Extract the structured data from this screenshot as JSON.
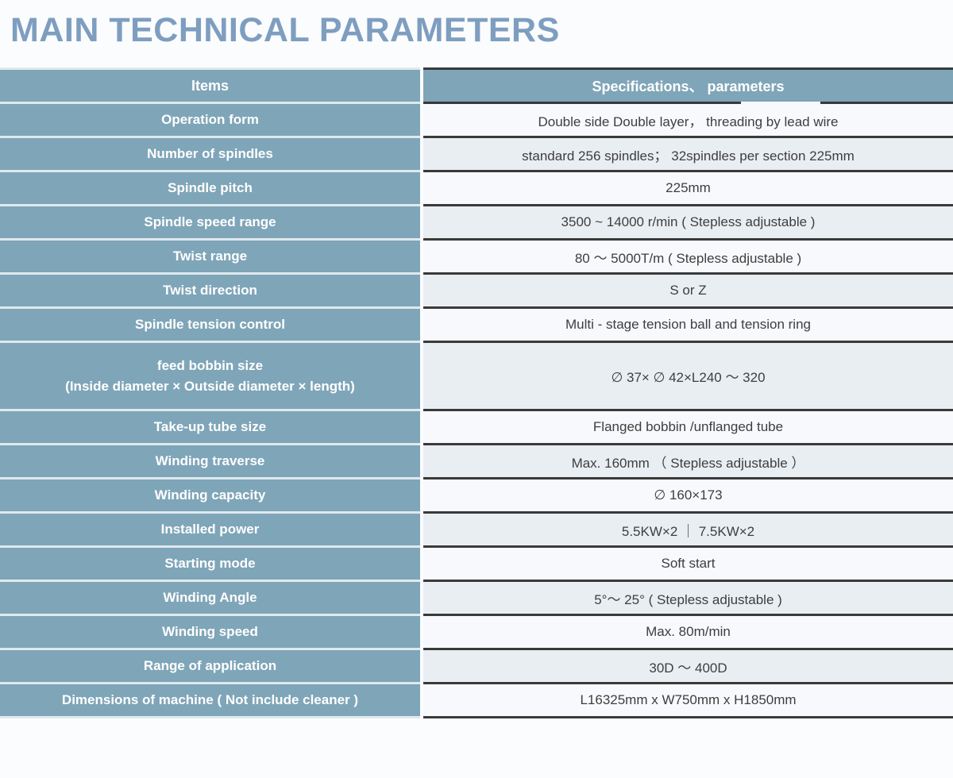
{
  "title": "MAIN TECHNICAL PARAMETERS",
  "colors": {
    "title_blue": "#7e9ec0",
    "cell_blue": "#7fa5b8",
    "row_light": "#f7f9fc",
    "row_shaded": "#e9eef3",
    "border_dark": "#3a3a3a"
  },
  "table": {
    "header": {
      "items": "Items",
      "specs": "Specifications、 parameters"
    },
    "rows": [
      {
        "item": "Operation form",
        "spec": "Double side Double layer，  threading by lead wire"
      },
      {
        "item": "Number of spindles",
        "spec": "standard  256 spindles；  32spindles per section 225mm"
      },
      {
        "item": "Spindle pitch",
        "spec": "225mm"
      },
      {
        "item": "Spindle speed range",
        "spec": "3500 ~ 14000 r/min ( Stepless adjustable )"
      },
      {
        "item": "Twist range",
        "spec": "80 ～ 5000T/m ( Stepless adjustable )"
      },
      {
        "item": "Twist direction",
        "spec": "S or Z"
      },
      {
        "item": "Spindle tension control",
        "spec": "Multi - stage tension ball and tension ring"
      },
      {
        "item": "feed bobbin size",
        "item_line2": "(Inside diameter × Outside diameter × length)",
        "spec": "∅ 37× ∅ 42×L240 ～ 320"
      },
      {
        "item": "Take-up tube size",
        "spec": "Flanged bobbin /unflanged tube"
      },
      {
        "item": "Winding traverse",
        "spec": "Max. 160mm （ Stepless adjustable ）"
      },
      {
        "item": "Winding capacity",
        "spec": "∅ 160×173"
      },
      {
        "item": "Installed power",
        "spec": "5.5KW×2  ｜  7.5KW×2"
      },
      {
        "item": "Starting mode",
        "spec": "Soft start"
      },
      {
        "item": "Winding Angle",
        "spec": "5°～ 25° ( Stepless adjustable )"
      },
      {
        "item": "Winding speed",
        "spec": "Max. 80m/min"
      },
      {
        "item": "Range of application",
        "spec": "30D ～ 400D"
      },
      {
        "item": "Dimensions of machine ( Not include cleaner )",
        "spec": "L16325mm x W750mm x H1850mm"
      }
    ]
  }
}
